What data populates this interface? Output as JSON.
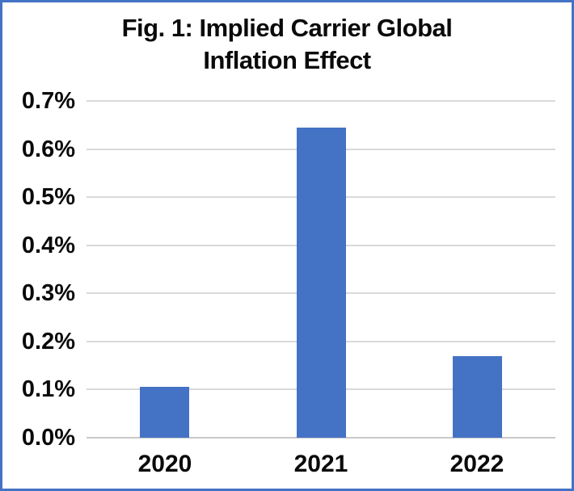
{
  "chart_data": {
    "type": "bar",
    "title": "Fig. 1: Implied Carrier Global Inflation Effect",
    "title_lines": [
      "Fig. 1: Implied Carrier Global",
      "Inflation Effect"
    ],
    "categories": [
      "2020",
      "2021",
      "2022"
    ],
    "values": [
      0.105,
      0.645,
      0.17
    ],
    "value_unit": "%",
    "xlabel": "",
    "ylabel": "",
    "ylim": [
      0.0,
      0.7
    ],
    "ytick_step": 0.1,
    "ytick_labels": [
      "0.0%",
      "0.1%",
      "0.2%",
      "0.3%",
      "0.4%",
      "0.5%",
      "0.6%",
      "0.7%"
    ],
    "grid": true,
    "legend": false,
    "colors": {
      "bar": "#4472C4",
      "frame_border": "#4472C4",
      "gridline": "#d9d9d9",
      "axis_line": "#c9c9c9",
      "text": "#0a0a0a",
      "background": "#ffffff"
    }
  }
}
